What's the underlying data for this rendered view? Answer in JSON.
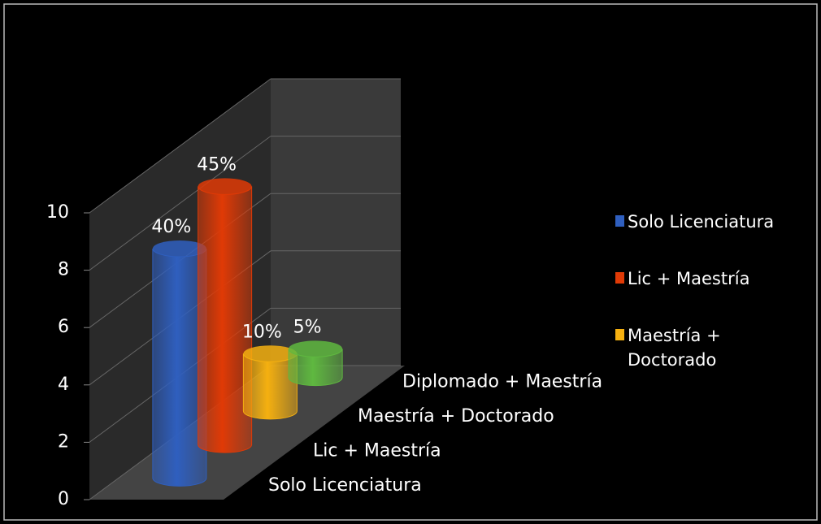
{
  "chart_data": {
    "type": "bar3d",
    "categories": [
      "Solo Licenciatura",
      "Lic + Maestría",
      "Maestría + Doctorado",
      "Diplomado + Maestría"
    ],
    "values": [
      8,
      9,
      2,
      1
    ],
    "value_labels": [
      "40%",
      "45%",
      "10%",
      "5%"
    ],
    "colors": [
      "#2f5fbf",
      "#e03a06",
      "#f5b010",
      "#5fb840"
    ],
    "legend": [
      {
        "name": "Solo Licenciatura",
        "color": "#2f5fbf"
      },
      {
        "name": "Lic + Maestría",
        "color": "#e03a06"
      },
      {
        "name": "Maestría + Doctorado",
        "color": "#f5b010"
      }
    ],
    "legend_position": "right",
    "ylim": [
      0,
      10
    ],
    "yticks": [
      0,
      2,
      4,
      6,
      8,
      10
    ],
    "grid": true
  }
}
